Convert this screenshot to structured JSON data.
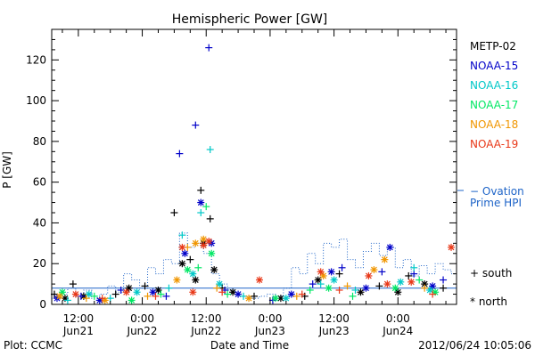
{
  "chart_data": {
    "type": "scatter",
    "title": "Hemispheric Power [GW]",
    "ylabel": "P [GW]",
    "xlabel": "Date and Time",
    "ylim": [
      0,
      135
    ],
    "yticks": [
      0,
      20,
      40,
      60,
      80,
      100,
      120
    ],
    "xlim": [
      "2012-06-21T07:00",
      "2012-06-24T11:00"
    ],
    "xticks": [
      {
        "time": "2012-06-21T12:00",
        "line1": "12:00",
        "line2": "Jun21"
      },
      {
        "time": "2012-06-22T00:00",
        "line1": "0:00",
        "line2": "Jun22"
      },
      {
        "time": "2012-06-22T12:00",
        "line1": "12:00",
        "line2": "Jun22"
      },
      {
        "time": "2012-06-23T00:00",
        "line1": "0:00",
        "line2": "Jun23"
      },
      {
        "time": "2012-06-23T12:00",
        "line1": "12:00",
        "line2": "Jun23"
      },
      {
        "time": "2012-06-24T00:00",
        "line1": "0:00",
        "line2": "Jun24"
      }
    ],
    "legend_placement": "right",
    "markers": {
      "south": "+",
      "north": "*"
    },
    "series": [
      {
        "name": "METP-02",
        "color": "#000000",
        "points": [
          [
            "2012-06-21T07:30",
            5,
            "+"
          ],
          [
            "2012-06-21T09:30",
            3,
            "*"
          ],
          [
            "2012-06-21T11:00",
            10,
            "+"
          ],
          [
            "2012-06-21T13:00",
            4,
            "*"
          ],
          [
            "2012-06-21T19:00",
            5,
            "+"
          ],
          [
            "2012-06-21T21:30",
            8,
            "*"
          ],
          [
            "2012-06-22T00:30",
            9,
            "+"
          ],
          [
            "2012-06-22T03:00",
            7,
            "*"
          ],
          [
            "2012-06-22T06:00",
            45,
            "+"
          ],
          [
            "2012-06-22T07:30",
            20,
            "*"
          ],
          [
            "2012-06-22T09:00",
            22,
            "+"
          ],
          [
            "2012-06-22T10:00",
            12,
            "*"
          ],
          [
            "2012-06-22T11:00",
            56,
            "+"
          ],
          [
            "2012-06-22T11:30",
            30,
            "*"
          ],
          [
            "2012-06-22T12:45",
            42,
            "+"
          ],
          [
            "2012-06-22T13:30",
            17,
            "*"
          ],
          [
            "2012-06-22T15:00",
            8,
            "+"
          ],
          [
            "2012-06-22T17:00",
            6,
            "*"
          ],
          [
            "2012-06-22T21:00",
            4,
            "+"
          ],
          [
            "2012-06-23T02:00",
            3,
            "*"
          ],
          [
            "2012-06-23T06:30",
            4,
            "+"
          ],
          [
            "2012-06-23T09:00",
            12,
            "*"
          ],
          [
            "2012-06-23T13:00",
            15,
            "+"
          ],
          [
            "2012-06-23T17:00",
            6,
            "*"
          ],
          [
            "2012-06-23T20:30",
            9,
            "+"
          ],
          [
            "2012-06-24T00:00",
            6,
            "*"
          ],
          [
            "2012-06-24T02:00",
            14,
            "+"
          ],
          [
            "2012-06-24T05:00",
            10,
            "*"
          ],
          [
            "2012-06-24T08:30",
            8,
            "+"
          ]
        ]
      },
      {
        "name": "NOAA-15",
        "color": "#0000c8",
        "points": [
          [
            "2012-06-21T08:00",
            3,
            "*"
          ],
          [
            "2012-06-21T12:30",
            4,
            "+"
          ],
          [
            "2012-06-21T16:00",
            2,
            "*"
          ],
          [
            "2012-06-21T20:00",
            7,
            "+"
          ],
          [
            "2012-06-22T02:00",
            6,
            "*"
          ],
          [
            "2012-06-22T04:30",
            4,
            "+"
          ],
          [
            "2012-06-22T07:00",
            74,
            "+"
          ],
          [
            "2012-06-22T08:00",
            25,
            "*"
          ],
          [
            "2012-06-22T10:00",
            88,
            "+"
          ],
          [
            "2012-06-22T11:00",
            50,
            "*"
          ],
          [
            "2012-06-22T12:30",
            126,
            "+"
          ],
          [
            "2012-06-22T13:00",
            30,
            "*"
          ],
          [
            "2012-06-22T15:30",
            7,
            "+"
          ],
          [
            "2012-06-22T18:00",
            5,
            "*"
          ],
          [
            "2012-06-23T00:30",
            2,
            "+"
          ],
          [
            "2012-06-23T04:00",
            5,
            "*"
          ],
          [
            "2012-06-23T08:00",
            10,
            "+"
          ],
          [
            "2012-06-23T11:30",
            16,
            "*"
          ],
          [
            "2012-06-23T13:30",
            18,
            "+"
          ],
          [
            "2012-06-23T18:00",
            8,
            "*"
          ],
          [
            "2012-06-23T21:00",
            16,
            "+"
          ],
          [
            "2012-06-23T22:30",
            28,
            "*"
          ],
          [
            "2012-06-24T03:00",
            15,
            "+"
          ],
          [
            "2012-06-24T06:30",
            9,
            "*"
          ],
          [
            "2012-06-24T08:30",
            12,
            "+"
          ]
        ]
      },
      {
        "name": "NOAA-16",
        "color": "#00c8c8",
        "points": [
          [
            "2012-06-21T10:00",
            2,
            "+"
          ],
          [
            "2012-06-21T14:00",
            5,
            "*"
          ],
          [
            "2012-06-21T18:00",
            3,
            "+"
          ],
          [
            "2012-06-21T23:00",
            6,
            "*"
          ],
          [
            "2012-06-22T05:00",
            8,
            "+"
          ],
          [
            "2012-06-22T07:30",
            34,
            "+"
          ],
          [
            "2012-06-22T09:30",
            15,
            "*"
          ],
          [
            "2012-06-22T11:00",
            45,
            "+"
          ],
          [
            "2012-06-22T12:45",
            76,
            "+"
          ],
          [
            "2012-06-22T14:30",
            10,
            "*"
          ],
          [
            "2012-06-22T19:00",
            4,
            "+"
          ],
          [
            "2012-06-23T03:00",
            3,
            "*"
          ],
          [
            "2012-06-23T09:30",
            10,
            "+"
          ],
          [
            "2012-06-23T12:00",
            12,
            "*"
          ],
          [
            "2012-06-23T16:00",
            7,
            "+"
          ],
          [
            "2012-06-24T00:30",
            11,
            "*"
          ],
          [
            "2012-06-24T03:00",
            18,
            "+"
          ],
          [
            "2012-06-24T06:00",
            7,
            "*"
          ]
        ]
      },
      {
        "name": "NOAA-17",
        "color": "#00e864",
        "points": [
          [
            "2012-06-21T09:00",
            6,
            "*"
          ],
          [
            "2012-06-21T15:00",
            4,
            "+"
          ],
          [
            "2012-06-21T22:00",
            2,
            "*"
          ],
          [
            "2012-06-22T03:30",
            5,
            "+"
          ],
          [
            "2012-06-22T08:30",
            17,
            "*"
          ],
          [
            "2012-06-22T10:30",
            18,
            "+"
          ],
          [
            "2012-06-22T12:00",
            48,
            "+"
          ],
          [
            "2012-06-22T13:00",
            25,
            "*"
          ],
          [
            "2012-06-22T16:00",
            5,
            "+"
          ],
          [
            "2012-06-23T01:00",
            3,
            "*"
          ],
          [
            "2012-06-23T07:30",
            7,
            "+"
          ],
          [
            "2012-06-23T11:00",
            8,
            "*"
          ],
          [
            "2012-06-23T15:30",
            4,
            "+"
          ],
          [
            "2012-06-23T23:30",
            8,
            "*"
          ],
          [
            "2012-06-24T04:00",
            12,
            "+"
          ],
          [
            "2012-06-24T07:00",
            6,
            "*"
          ]
        ]
      },
      {
        "name": "NOAA-18",
        "color": "#f09600",
        "points": [
          [
            "2012-06-21T08:30",
            4,
            "*"
          ],
          [
            "2012-06-21T13:30",
            3,
            "+"
          ],
          [
            "2012-06-21T17:00",
            2,
            "*"
          ],
          [
            "2012-06-22T01:00",
            4,
            "+"
          ],
          [
            "2012-06-22T06:30",
            12,
            "*"
          ],
          [
            "2012-06-22T08:30",
            28,
            "+"
          ],
          [
            "2012-06-22T10:00",
            30,
            "*"
          ],
          [
            "2012-06-22T11:30",
            32,
            "*"
          ],
          [
            "2012-06-22T14:00",
            8,
            "+"
          ],
          [
            "2012-06-22T20:00",
            3,
            "*"
          ],
          [
            "2012-06-23T05:00",
            4,
            "+"
          ],
          [
            "2012-06-23T10:00",
            14,
            "*"
          ],
          [
            "2012-06-23T14:30",
            9,
            "+"
          ],
          [
            "2012-06-23T19:30",
            17,
            "*"
          ],
          [
            "2012-06-23T21:30",
            22,
            "*"
          ],
          [
            "2012-06-24T05:00",
            8,
            "+"
          ]
        ]
      },
      {
        "name": "NOAA-19",
        "color": "#e83818",
        "points": [
          [
            "2012-06-21T11:30",
            5,
            "*"
          ],
          [
            "2012-06-21T16:30",
            3,
            "+"
          ],
          [
            "2012-06-21T21:00",
            6,
            "*"
          ],
          [
            "2012-06-22T02:30",
            4,
            "+"
          ],
          [
            "2012-06-22T07:30",
            28,
            "*"
          ],
          [
            "2012-06-22T09:30",
            6,
            "*"
          ],
          [
            "2012-06-22T11:30",
            29,
            "*"
          ],
          [
            "2012-06-22T12:30",
            31,
            "*"
          ],
          [
            "2012-06-22T15:00",
            6,
            "+"
          ],
          [
            "2012-06-22T22:00",
            12,
            "*"
          ],
          [
            "2012-06-23T06:00",
            5,
            "+"
          ],
          [
            "2012-06-23T09:30",
            16,
            "*"
          ],
          [
            "2012-06-23T13:00",
            7,
            "+"
          ],
          [
            "2012-06-23T18:30",
            14,
            "*"
          ],
          [
            "2012-06-23T22:00",
            10,
            "*"
          ],
          [
            "2012-06-24T02:30",
            11,
            "*"
          ],
          [
            "2012-06-24T06:30",
            5,
            "+"
          ],
          [
            "2012-06-24T10:00",
            28,
            "*"
          ]
        ]
      }
    ],
    "ovation": {
      "name": "− Ovation Prime HPI",
      "color": "#1e64c8",
      "steps": [
        [
          "2012-06-21T07:00",
          3
        ],
        [
          "2012-06-21T08:30",
          5
        ],
        [
          "2012-06-21T10:00",
          8
        ],
        [
          "2012-06-21T11:30",
          4
        ],
        [
          "2012-06-21T13:00",
          7
        ],
        [
          "2012-06-21T14:30",
          3
        ],
        [
          "2012-06-21T16:00",
          5
        ],
        [
          "2012-06-21T17:30",
          9
        ],
        [
          "2012-06-21T19:00",
          6
        ],
        [
          "2012-06-21T20:30",
          15
        ],
        [
          "2012-06-21T22:00",
          12
        ],
        [
          "2012-06-21T23:30",
          8
        ],
        [
          "2012-06-22T01:00",
          18
        ],
        [
          "2012-06-22T02:30",
          15
        ],
        [
          "2012-06-22T04:00",
          22
        ],
        [
          "2012-06-22T05:30",
          20
        ],
        [
          "2012-06-22T07:00",
          35
        ],
        [
          "2012-06-22T08:30",
          28
        ],
        [
          "2012-06-22T10:00",
          30
        ],
        [
          "2012-06-22T11:30",
          25
        ],
        [
          "2012-06-22T13:00",
          15
        ],
        [
          "2012-06-22T14:30",
          10
        ],
        [
          "2012-06-22T16:00",
          7
        ],
        [
          "2012-06-22T17:30",
          5
        ],
        [
          "2012-06-22T19:00",
          4
        ],
        [
          "2012-06-22T20:30",
          3
        ],
        [
          "2012-06-22T22:00",
          4
        ],
        [
          "2012-06-22T23:30",
          5
        ],
        [
          "2012-06-23T01:00",
          4
        ],
        [
          "2012-06-23T02:30",
          8
        ],
        [
          "2012-06-23T04:00",
          18
        ],
        [
          "2012-06-23T05:30",
          15
        ],
        [
          "2012-06-23T07:00",
          25
        ],
        [
          "2012-06-23T08:30",
          20
        ],
        [
          "2012-06-23T10:00",
          30
        ],
        [
          "2012-06-23T11:30",
          28
        ],
        [
          "2012-06-23T13:00",
          32
        ],
        [
          "2012-06-23T14:30",
          22
        ],
        [
          "2012-06-23T16:00",
          18
        ],
        [
          "2012-06-23T17:30",
          26
        ],
        [
          "2012-06-23T19:00",
          30
        ],
        [
          "2012-06-23T20:30",
          24
        ],
        [
          "2012-06-23T22:00",
          28
        ],
        [
          "2012-06-23T23:30",
          18
        ],
        [
          "2012-06-24T01:00",
          22
        ],
        [
          "2012-06-24T02:30",
          14
        ],
        [
          "2012-06-24T04:00",
          19
        ],
        [
          "2012-06-24T05:30",
          15
        ],
        [
          "2012-06-24T07:00",
          20
        ],
        [
          "2012-06-24T08:30",
          17
        ],
        [
          "2012-06-24T10:00",
          15
        ]
      ]
    }
  },
  "footer": {
    "plot_credit": "Plot: CCMC",
    "timestamp": "2012/06/24 10:05:06"
  },
  "legend": {
    "south_label": "south",
    "north_label": "north"
  }
}
